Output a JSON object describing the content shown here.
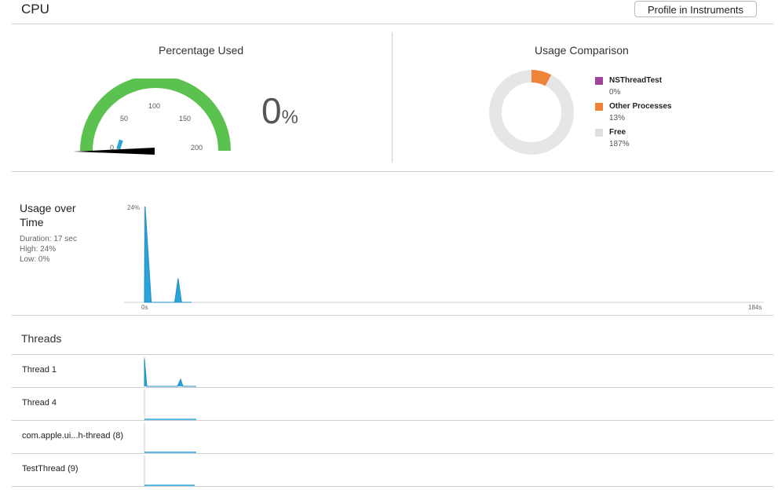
{
  "header": {
    "title": "CPU",
    "profile_button": "Profile in Instruments"
  },
  "percentage_used": {
    "title": "Percentage Used",
    "value": "0",
    "unit": "%",
    "gauge": {
      "ticks": [
        "0",
        "50",
        "100",
        "150",
        "200"
      ],
      "max": 200,
      "needle_value": 0,
      "app_value": 0,
      "other_value": 13,
      "color": "#5cc24f"
    }
  },
  "usage_comparison": {
    "title": "Usage Comparison",
    "items": [
      {
        "name": "NSThreadTest",
        "value": "0%",
        "color": "#a0449b"
      },
      {
        "name": "Other Processes",
        "value": "13%",
        "color": "#f0833a"
      },
      {
        "name": "Free",
        "value": "187%",
        "color": "#e6e6e6"
      }
    ]
  },
  "usage_over_time": {
    "title_line1": "Usage over",
    "title_line2": "Time",
    "duration": "Duration: 17 sec",
    "high": "High: 24%",
    "low": "Low: 0%",
    "y_label": "24%",
    "x_start": "0s",
    "x_end": "184s"
  },
  "threads": {
    "title": "Threads",
    "items": [
      {
        "label": "Thread 1"
      },
      {
        "label": "Thread 4"
      },
      {
        "label": "com.apple.ui...h-thread (8)"
      },
      {
        "label": "TestThread (9)"
      }
    ]
  },
  "chart_data": {
    "type": "area",
    "title": "Usage over Time",
    "xlabel": "",
    "ylabel": "",
    "xlim": [
      0,
      184
    ],
    "ylim": [
      0,
      24
    ],
    "series": [
      {
        "values": [
          [
            0,
            0
          ],
          [
            0.2,
            24
          ],
          [
            2,
            0
          ],
          [
            9,
            0
          ],
          [
            10,
            6
          ],
          [
            11,
            0
          ],
          [
            14,
            0
          ]
        ]
      }
    ]
  }
}
